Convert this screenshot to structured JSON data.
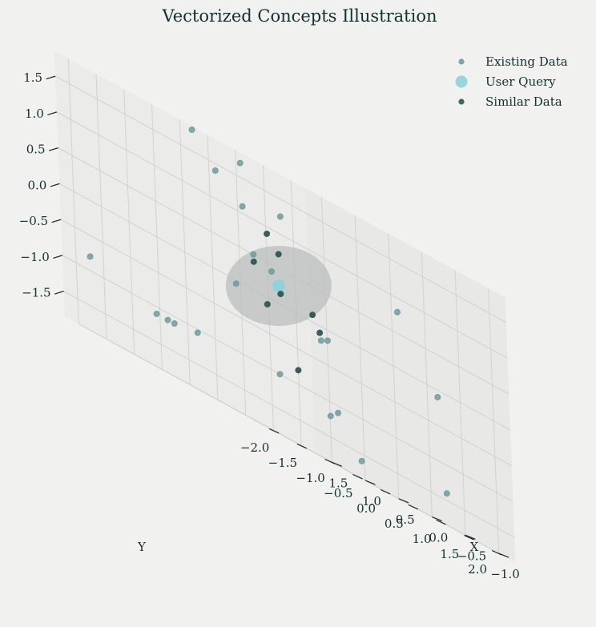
{
  "chart_data": {
    "type": "scatter",
    "title": "Vectorized Concepts Illustration",
    "xlabel": "X",
    "ylabel": "Y",
    "zlabel": "",
    "xlim": [
      -1.25,
      1.75
    ],
    "ylim": [
      -2.25,
      2.25
    ],
    "zlim": [
      -1.85,
      1.85
    ],
    "x_ticks": [
      "−1.0",
      "−0.5",
      "0.0",
      "0.5",
      "1.0",
      "1.5"
    ],
    "y_ticks": [
      "−2.0",
      "−1.5",
      "−1.0",
      "−0.5",
      "0.0",
      "0.5",
      "1.0",
      "1.5",
      "2.0"
    ],
    "z_ticks": [
      "1.5",
      "1.0",
      "0.5",
      "0.0",
      "−0.5",
      "−1.0",
      "−1.5"
    ],
    "grid": true,
    "legend_position": "top-right",
    "colors": {
      "existing": "#6f9b9c",
      "query": "#8fd2db",
      "similar": "#2f5556",
      "sphere": "#b8bcba",
      "pane": "#ececea",
      "background": "#f1f1ef",
      "text": "#123131"
    },
    "series": [
      {
        "name": "Existing Data",
        "points": [
          {
            "x": 0.4,
            "y": -1.4,
            "z": 1.8
          },
          {
            "x": 0.6,
            "y": -0.3,
            "z": 1.7
          },
          {
            "x": 0.9,
            "y": -0.4,
            "z": 1.4
          },
          {
            "x": 0.1,
            "y": -0.2,
            "z": 1.25
          },
          {
            "x": -0.3,
            "y": 1.4,
            "z": 0.8
          },
          {
            "x": 0.8,
            "y": -0.05,
            "z": 1.1
          },
          {
            "x": -1.2,
            "y": 1.0,
            "z": -0.1
          },
          {
            "x": 0.6,
            "y": 0.2,
            "z": 0.4
          },
          {
            "x": 1.3,
            "y": -0.9,
            "z": -1.1
          },
          {
            "x": 0.7,
            "y": 1.3,
            "z": -1.2
          },
          {
            "x": -0.8,
            "y": -1.8,
            "z": 0.5
          },
          {
            "x": 0.2,
            "y": 0.7,
            "z": -0.15
          },
          {
            "x": 0.3,
            "y": 0.7,
            "z": -0.2
          },
          {
            "x": -0.7,
            "y": 1.7,
            "z": -1.4
          },
          {
            "x": 0.5,
            "y": 1.6,
            "z": -1.6
          },
          {
            "x": 0.2,
            "y": -2.1,
            "z": -1.1
          },
          {
            "x": 1.45,
            "y": -2.1,
            "z": -0.8
          },
          {
            "x": 0.0,
            "y": 0.6,
            "z": -1.1
          },
          {
            "x": 0.7,
            "y": 0.4,
            "z": -1.0
          },
          {
            "x": 0.1,
            "y": -1.8,
            "z": -1.05
          },
          {
            "x": 0.8,
            "y": -1.7,
            "z": -1.1
          },
          {
            "x": 0.4,
            "y": -0.7,
            "z": -0.05
          }
        ]
      },
      {
        "name": "User Query",
        "points": [
          {
            "x": 0.5,
            "y": 0.2,
            "z": 0.25
          }
        ]
      },
      {
        "name": "Similar Data",
        "points": [
          {
            "x": 0.7,
            "y": 0.0,
            "z": 0.4
          },
          {
            "x": 0.5,
            "y": 0.8,
            "z": 0.1
          },
          {
            "x": 0.4,
            "y": 0.1,
            "z": 0.7
          },
          {
            "x": 0.4,
            "y": -0.1,
            "z": 0.9
          },
          {
            "x": 0.6,
            "y": 0.35,
            "z": 0.15
          },
          {
            "x": 0.4,
            "y": 0.8,
            "z": -0.1
          },
          {
            "x": 0.6,
            "y": 0.1,
            "z": -0.1
          },
          {
            "x": 0.5,
            "y": 0.5,
            "z": -0.8
          }
        ]
      }
    ],
    "annotations": [
      {
        "shape": "sphere",
        "center": {
          "x": 0.5,
          "y": 0.2,
          "z": 0.25
        },
        "radius": 0.75
      }
    ]
  }
}
